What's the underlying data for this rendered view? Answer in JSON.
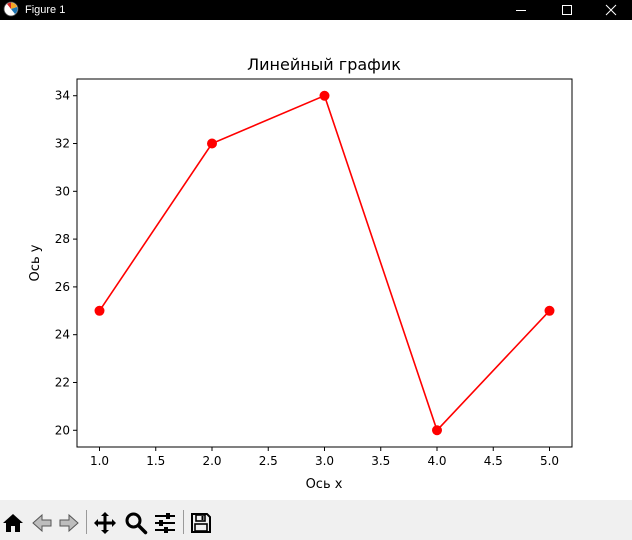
{
  "window": {
    "title": "Figure 1",
    "controls": [
      "minimize",
      "maximize",
      "close"
    ]
  },
  "toolbar": {
    "buttons": [
      {
        "name": "home",
        "icon": "home-icon"
      },
      {
        "name": "back",
        "icon": "arrow-left-icon"
      },
      {
        "name": "forward",
        "icon": "arrow-right-icon"
      },
      {
        "name": "pan",
        "icon": "move-icon"
      },
      {
        "name": "zoom",
        "icon": "magnifier-icon"
      },
      {
        "name": "configure-subplots",
        "icon": "sliders-icon"
      },
      {
        "name": "save",
        "icon": "floppy-disk-icon"
      }
    ]
  },
  "chart_data": {
    "type": "line",
    "title": "Линейный график",
    "xlabel": "Ось x",
    "ylabel": "Ось y",
    "x": [
      1,
      2,
      3,
      4,
      5
    ],
    "series": [
      {
        "values": [
          25,
          32,
          34,
          20,
          25
        ],
        "color": "#ff0000",
        "marker": "circle"
      }
    ],
    "xticks": [
      "1.0",
      "1.5",
      "2.0",
      "2.5",
      "3.0",
      "3.5",
      "4.0",
      "4.5",
      "5.0"
    ],
    "yticks": [
      "20",
      "22",
      "24",
      "26",
      "28",
      "30",
      "32",
      "34"
    ],
    "xlim": [
      0.8,
      5.2
    ],
    "ylim": [
      19.3,
      34.7
    ],
    "grid": false
  }
}
